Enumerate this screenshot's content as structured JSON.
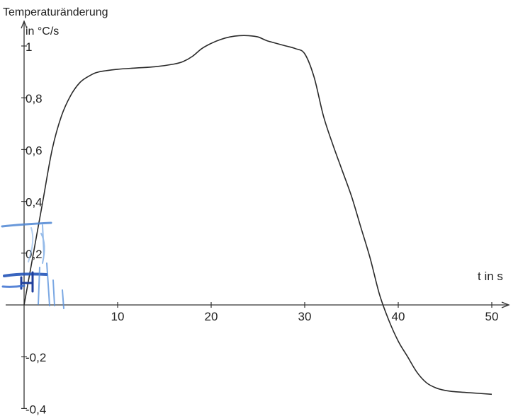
{
  "chart_data": {
    "type": "line",
    "title": "",
    "ylabel": "Temperaturänderung",
    "ylabel_unit": "in °C/s",
    "xlabel": "t in s",
    "xlim": [
      0,
      52
    ],
    "ylim": [
      -0.4,
      1.1
    ],
    "x_ticks": [
      10,
      20,
      30,
      40,
      50
    ],
    "y_ticks": [
      -0.4,
      -0.2,
      0.2,
      0.4,
      0.6,
      0.8,
      1
    ],
    "x_tick_labels": [
      "10",
      "20",
      "30",
      "40",
      "50"
    ],
    "y_tick_labels": [
      "-0,4",
      "-0,2",
      "0,2",
      "0,4",
      "0,6",
      "0,8",
      "1"
    ],
    "grid": false,
    "series": [
      {
        "x": [
          0,
          1,
          2,
          3,
          4,
          5,
          6,
          7,
          8,
          10,
          12,
          14,
          16,
          17,
          18,
          19,
          20,
          21,
          22,
          23,
          24,
          25,
          26,
          28,
          29,
          30,
          31,
          32,
          33,
          34,
          35,
          36,
          37,
          38,
          39,
          40,
          41,
          42,
          43,
          44,
          45,
          46,
          48,
          50
        ],
        "y": [
          0.0,
          0.2,
          0.4,
          0.6,
          0.73,
          0.81,
          0.86,
          0.885,
          0.9,
          0.91,
          0.915,
          0.92,
          0.93,
          0.94,
          0.96,
          0.99,
          1.01,
          1.025,
          1.035,
          1.04,
          1.04,
          1.035,
          1.02,
          1.0,
          0.99,
          0.97,
          0.88,
          0.73,
          0.62,
          0.52,
          0.42,
          0.3,
          0.18,
          0.04,
          -0.06,
          -0.14,
          -0.2,
          -0.26,
          -0.3,
          -0.32,
          -0.33,
          -0.335,
          -0.34,
          -0.345
        ]
      }
    ]
  }
}
